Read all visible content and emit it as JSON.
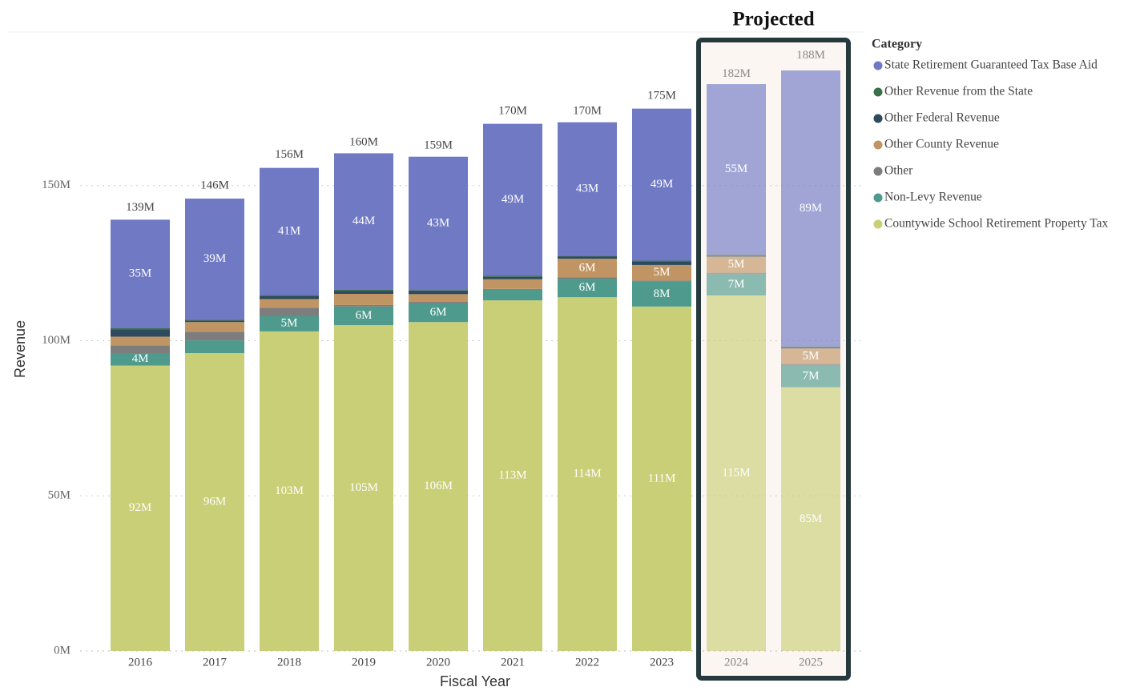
{
  "chart_data": {
    "type": "stacked_bar",
    "x_label": "Fiscal Year",
    "y_label": "Revenue",
    "categories": [
      "2016",
      "2017",
      "2018",
      "2019",
      "2020",
      "2021",
      "2022",
      "2023",
      "2024",
      "2025"
    ],
    "series": [
      {
        "name": "Countywide School Retirement Property Tax",
        "color": "#c9cf76",
        "values": [
          92,
          96,
          103,
          105,
          106,
          113,
          114,
          111,
          114.6,
          85
        ],
        "value_labels": [
          "92M",
          "96M",
          "103M",
          "105M",
          "106M",
          "113M",
          "114M",
          "111M",
          "115M",
          "85M"
        ]
      },
      {
        "name": "Non-Levy Revenue",
        "color": "#4e9a8d",
        "values": [
          4,
          4.1,
          5,
          6,
          6,
          3.4,
          6,
          8,
          6.8,
          7
        ],
        "value_labels": [
          "4M",
          null,
          "5M",
          "6M",
          "6M",
          null,
          "6M",
          "8M",
          "7M",
          "7M"
        ]
      },
      {
        "name": "Other",
        "color": "#7d7d7d",
        "values": [
          2.5,
          2.8,
          2.6,
          0.5,
          0.5,
          0.3,
          0.4,
          0.4,
          0.5,
          0.5
        ]
      },
      {
        "name": "Other County Revenue",
        "color": "#c09563",
        "values": [
          2.8,
          3.1,
          2.8,
          3.6,
          2.5,
          3.1,
          6,
          5,
          5.2,
          5
        ],
        "value_labels": [
          null,
          null,
          null,
          null,
          null,
          null,
          "6M",
          "5M",
          "5M",
          "5M"
        ]
      },
      {
        "name": "Other Federal Revenue",
        "color": "#2d4a5e",
        "values": [
          2.3,
          0.5,
          1,
          1,
          1,
          0.8,
          0.8,
          1.2,
          0.3,
          0.3
        ]
      },
      {
        "name": "Other Revenue from the State",
        "color": "#3c6e4a",
        "values": [
          0.4,
          0.3,
          0.3,
          0.3,
          0.3,
          0.3,
          0.2,
          0.2,
          0.3,
          0.3
        ]
      },
      {
        "name": "State Retirement Guaranteed Tax Base Aid",
        "color": "#7079c4",
        "values": [
          35,
          39,
          41,
          44,
          43,
          49,
          43,
          49,
          55,
          89
        ],
        "value_labels": [
          "35M",
          "39M",
          "41M",
          "44M",
          "43M",
          "49M",
          "43M",
          "49M",
          "55M",
          "89M"
        ]
      }
    ],
    "totals": {
      "values": [
        139,
        146,
        156,
        160,
        159,
        170,
        170,
        175,
        182,
        188
      ],
      "value_labels": [
        "139M",
        "146M",
        "156M",
        "160M",
        "159M",
        "170M",
        "170M",
        "175M",
        "182M",
        "188M"
      ]
    },
    "ylim": [
      0,
      200
    ],
    "yticks": [
      {
        "value": 0,
        "label": "0M"
      },
      {
        "value": 50,
        "label": "50M"
      },
      {
        "value": 100,
        "label": "100M"
      },
      {
        "value": 150,
        "label": "150M"
      }
    ],
    "grid": true,
    "legend": {
      "title": "Category",
      "position": "right"
    },
    "projected": {
      "label": "Projected",
      "categories": [
        "2024",
        "2025"
      ]
    }
  }
}
